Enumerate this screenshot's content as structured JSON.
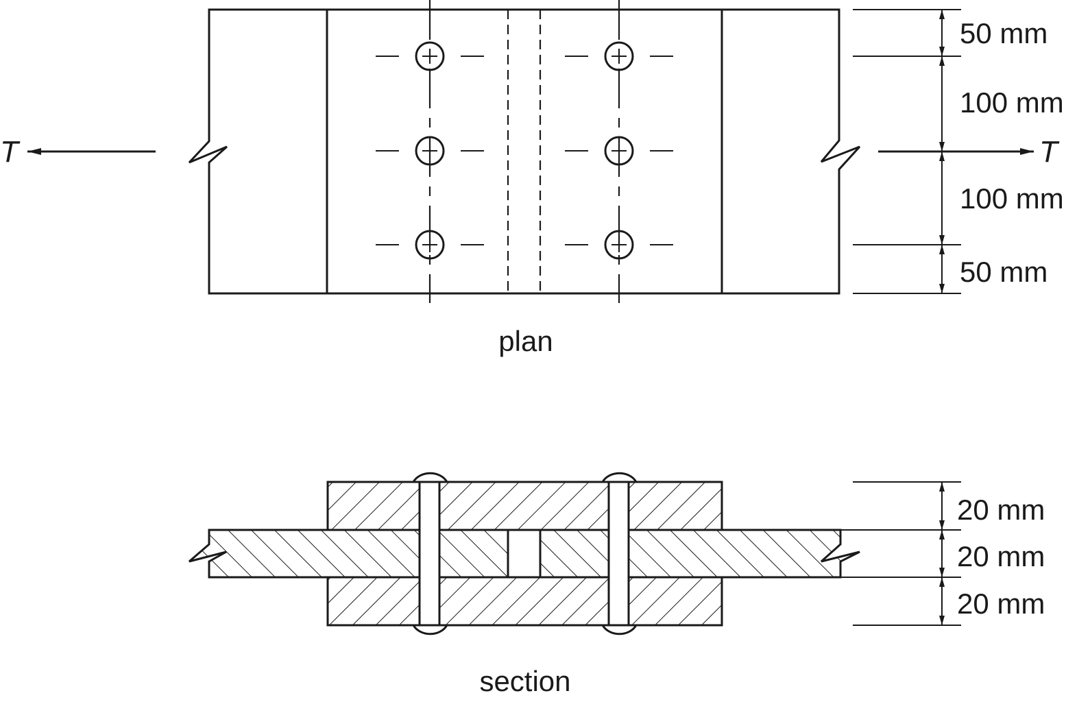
{
  "plan": {
    "caption": "plan",
    "force_label": "T",
    "dimensions": [
      "50 mm",
      "100 mm",
      "100 mm",
      "50 mm"
    ],
    "bolt_rows": 3,
    "bolt_columns": 2
  },
  "section": {
    "caption": "section",
    "dimensions": [
      "20 mm",
      "20 mm",
      "20 mm"
    ]
  }
}
